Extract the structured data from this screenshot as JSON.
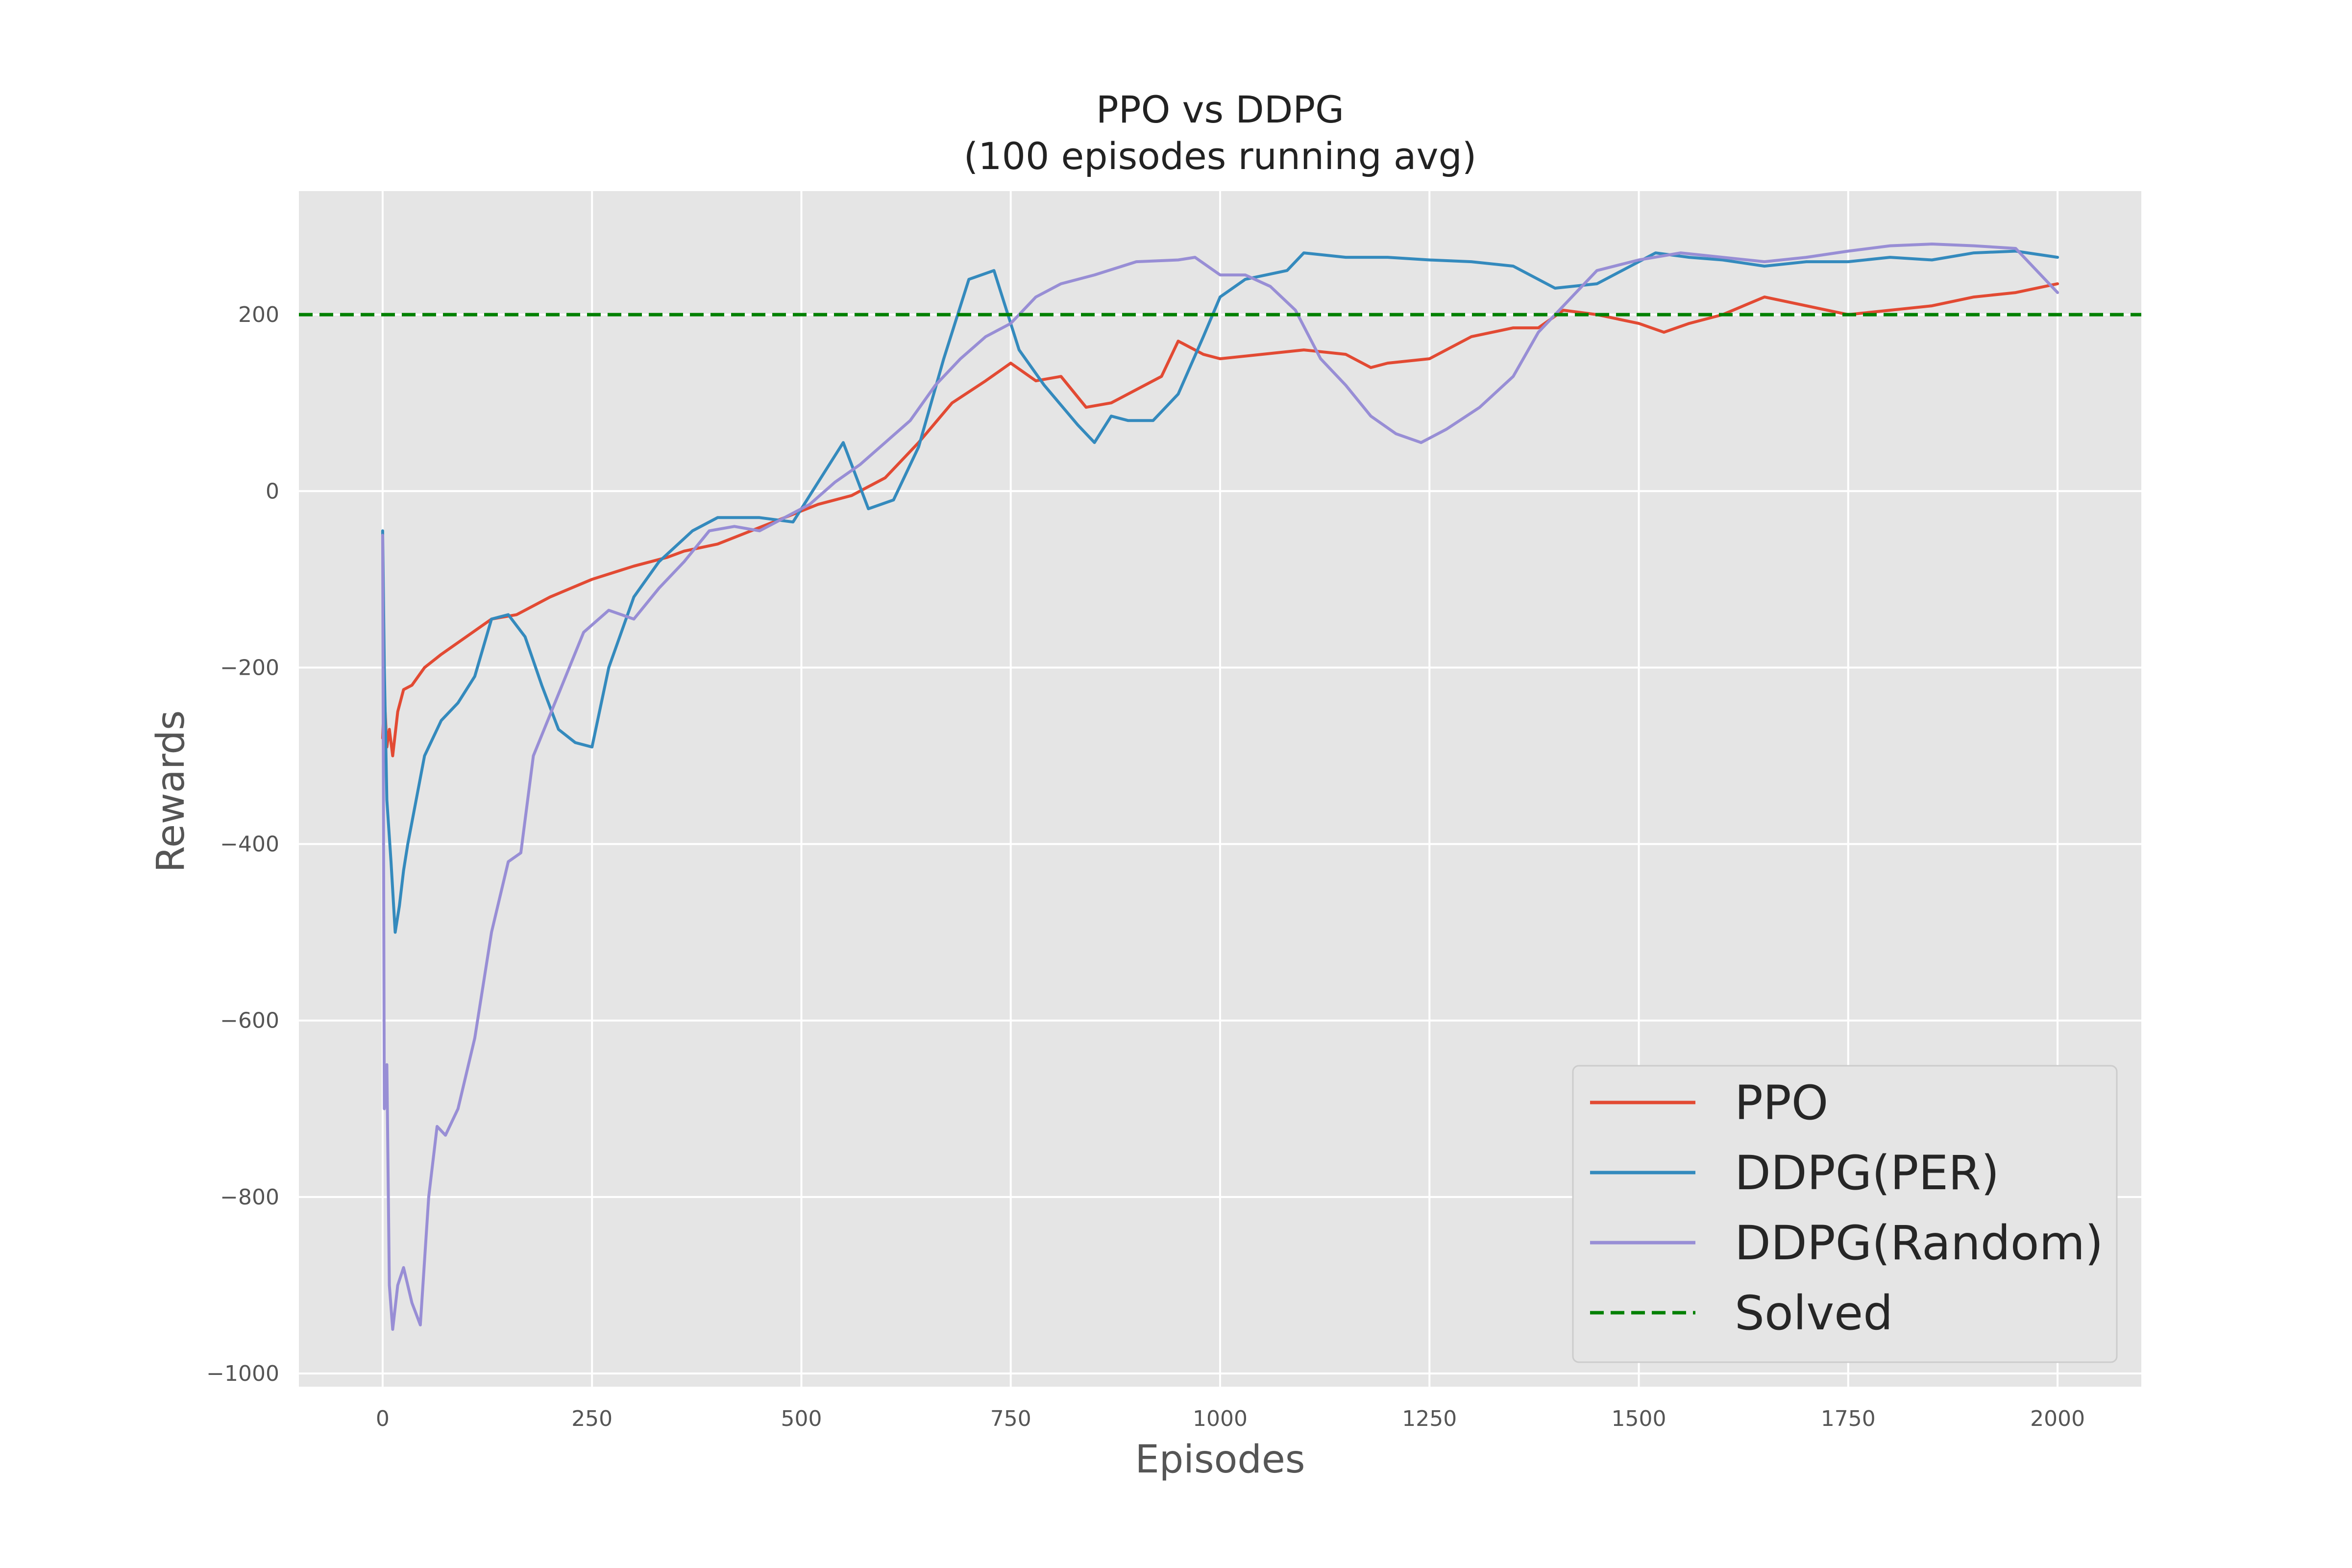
{
  "chart_data": {
    "type": "line",
    "title": "PPO vs DDPG",
    "subtitle": "(100 episodes running avg)",
    "xlabel": "Episodes",
    "ylabel": "Rewards",
    "xlim": [
      -100,
      2100
    ],
    "ylim": [
      -1015,
      340
    ],
    "xticks": [
      0,
      250,
      500,
      750,
      1000,
      1250,
      1500,
      1750,
      2000
    ],
    "yticks": [
      -1000,
      -800,
      -600,
      -400,
      -200,
      0,
      200
    ],
    "xtick_labels": [
      "0",
      "250",
      "500",
      "750",
      "1000",
      "1250",
      "1500",
      "1750",
      "2000"
    ],
    "ytick_labels": [
      "−1000",
      "−800",
      "−600",
      "−400",
      "−200",
      "0",
      "200"
    ],
    "grid": true,
    "legend_position": "lower-right",
    "background_color": "#e5e5e5",
    "series": [
      {
        "name": "PPO",
        "color": "#e24a33",
        "dashed": false,
        "points": [
          [
            0,
            -280
          ],
          [
            2,
            -230
          ],
          [
            5,
            -290
          ],
          [
            8,
            -270
          ],
          [
            12,
            -300
          ],
          [
            18,
            -250
          ],
          [
            25,
            -225
          ],
          [
            35,
            -220
          ],
          [
            50,
            -200
          ],
          [
            70,
            -185
          ],
          [
            100,
            -165
          ],
          [
            130,
            -145
          ],
          [
            160,
            -140
          ],
          [
            200,
            -120
          ],
          [
            250,
            -100
          ],
          [
            300,
            -85
          ],
          [
            320,
            -80
          ],
          [
            340,
            -75
          ],
          [
            360,
            -68
          ],
          [
            400,
            -60
          ],
          [
            440,
            -45
          ],
          [
            480,
            -30
          ],
          [
            520,
            -15
          ],
          [
            560,
            -5
          ],
          [
            600,
            15
          ],
          [
            640,
            55
          ],
          [
            680,
            100
          ],
          [
            720,
            125
          ],
          [
            750,
            145
          ],
          [
            780,
            125
          ],
          [
            810,
            130
          ],
          [
            840,
            95
          ],
          [
            870,
            100
          ],
          [
            900,
            115
          ],
          [
            930,
            130
          ],
          [
            950,
            170
          ],
          [
            980,
            155
          ],
          [
            1000,
            150
          ],
          [
            1050,
            155
          ],
          [
            1100,
            160
          ],
          [
            1150,
            155
          ],
          [
            1180,
            140
          ],
          [
            1200,
            145
          ],
          [
            1250,
            150
          ],
          [
            1280,
            165
          ],
          [
            1300,
            175
          ],
          [
            1350,
            185
          ],
          [
            1380,
            185
          ],
          [
            1410,
            205
          ],
          [
            1450,
            200
          ],
          [
            1500,
            190
          ],
          [
            1530,
            180
          ],
          [
            1560,
            190
          ],
          [
            1600,
            200
          ],
          [
            1650,
            220
          ],
          [
            1700,
            210
          ],
          [
            1750,
            200
          ],
          [
            1800,
            205
          ],
          [
            1850,
            210
          ],
          [
            1900,
            220
          ],
          [
            1950,
            225
          ],
          [
            2000,
            235
          ]
        ]
      },
      {
        "name": "DDPG(PER)",
        "color": "#348abd",
        "dashed": false,
        "points": [
          [
            0,
            -45
          ],
          [
            2,
            -200
          ],
          [
            5,
            -350
          ],
          [
            10,
            -420
          ],
          [
            15,
            -500
          ],
          [
            20,
            -470
          ],
          [
            25,
            -430
          ],
          [
            30,
            -400
          ],
          [
            40,
            -350
          ],
          [
            50,
            -300
          ],
          [
            70,
            -260
          ],
          [
            90,
            -240
          ],
          [
            110,
            -210
          ],
          [
            130,
            -145
          ],
          [
            150,
            -140
          ],
          [
            170,
            -165
          ],
          [
            190,
            -220
          ],
          [
            210,
            -270
          ],
          [
            230,
            -285
          ],
          [
            250,
            -290
          ],
          [
            270,
            -200
          ],
          [
            300,
            -120
          ],
          [
            330,
            -80
          ],
          [
            370,
            -45
          ],
          [
            400,
            -30
          ],
          [
            450,
            -30
          ],
          [
            490,
            -35
          ],
          [
            520,
            10
          ],
          [
            550,
            55
          ],
          [
            580,
            -20
          ],
          [
            610,
            -10
          ],
          [
            640,
            50
          ],
          [
            670,
            150
          ],
          [
            700,
            240
          ],
          [
            730,
            250
          ],
          [
            760,
            160
          ],
          [
            790,
            120
          ],
          [
            830,
            75
          ],
          [
            850,
            55
          ],
          [
            870,
            85
          ],
          [
            890,
            80
          ],
          [
            920,
            80
          ],
          [
            950,
            110
          ],
          [
            980,
            175
          ],
          [
            1000,
            220
          ],
          [
            1030,
            240
          ],
          [
            1080,
            250
          ],
          [
            1100,
            270
          ],
          [
            1150,
            265
          ],
          [
            1200,
            265
          ],
          [
            1250,
            262
          ],
          [
            1300,
            260
          ],
          [
            1350,
            255
          ],
          [
            1400,
            230
          ],
          [
            1450,
            235
          ],
          [
            1480,
            250
          ],
          [
            1520,
            270
          ],
          [
            1560,
            265
          ],
          [
            1600,
            262
          ],
          [
            1650,
            255
          ],
          [
            1700,
            260
          ],
          [
            1750,
            260
          ],
          [
            1800,
            265
          ],
          [
            1850,
            262
          ],
          [
            1900,
            270
          ],
          [
            1950,
            272
          ],
          [
            2000,
            265
          ]
        ]
      },
      {
        "name": "DDPG(Random)",
        "color": "#988ed5",
        "dashed": false,
        "points": [
          [
            0,
            -50
          ],
          [
            2,
            -700
          ],
          [
            5,
            -650
          ],
          [
            8,
            -900
          ],
          [
            12,
            -950
          ],
          [
            18,
            -900
          ],
          [
            25,
            -880
          ],
          [
            35,
            -920
          ],
          [
            45,
            -945
          ],
          [
            55,
            -800
          ],
          [
            65,
            -720
          ],
          [
            75,
            -730
          ],
          [
            90,
            -700
          ],
          [
            110,
            -620
          ],
          [
            130,
            -500
          ],
          [
            150,
            -420
          ],
          [
            165,
            -410
          ],
          [
            180,
            -300
          ],
          [
            210,
            -230
          ],
          [
            240,
            -160
          ],
          [
            270,
            -135
          ],
          [
            300,
            -145
          ],
          [
            330,
            -110
          ],
          [
            360,
            -80
          ],
          [
            390,
            -45
          ],
          [
            420,
            -40
          ],
          [
            450,
            -45
          ],
          [
            480,
            -30
          ],
          [
            510,
            -15
          ],
          [
            540,
            10
          ],
          [
            570,
            30
          ],
          [
            600,
            55
          ],
          [
            630,
            80
          ],
          [
            660,
            120
          ],
          [
            690,
            150
          ],
          [
            720,
            175
          ],
          [
            750,
            190
          ],
          [
            780,
            220
          ],
          [
            810,
            235
          ],
          [
            850,
            245
          ],
          [
            900,
            260
          ],
          [
            950,
            262
          ],
          [
            970,
            265
          ],
          [
            1000,
            245
          ],
          [
            1030,
            245
          ],
          [
            1060,
            232
          ],
          [
            1090,
            205
          ],
          [
            1120,
            150
          ],
          [
            1150,
            120
          ],
          [
            1180,
            85
          ],
          [
            1210,
            65
          ],
          [
            1240,
            55
          ],
          [
            1270,
            70
          ],
          [
            1310,
            95
          ],
          [
            1350,
            130
          ],
          [
            1380,
            180
          ],
          [
            1420,
            220
          ],
          [
            1450,
            250
          ],
          [
            1500,
            262
          ],
          [
            1550,
            270
          ],
          [
            1600,
            265
          ],
          [
            1650,
            260
          ],
          [
            1700,
            265
          ],
          [
            1750,
            272
          ],
          [
            1800,
            278
          ],
          [
            1850,
            280
          ],
          [
            1900,
            278
          ],
          [
            1950,
            275
          ],
          [
            1980,
            245
          ],
          [
            2000,
            225
          ]
        ]
      },
      {
        "name": "Solved",
        "color": "#008000",
        "dashed": true,
        "points": [
          [
            -100,
            200
          ],
          [
            2100,
            200
          ]
        ]
      }
    ]
  }
}
